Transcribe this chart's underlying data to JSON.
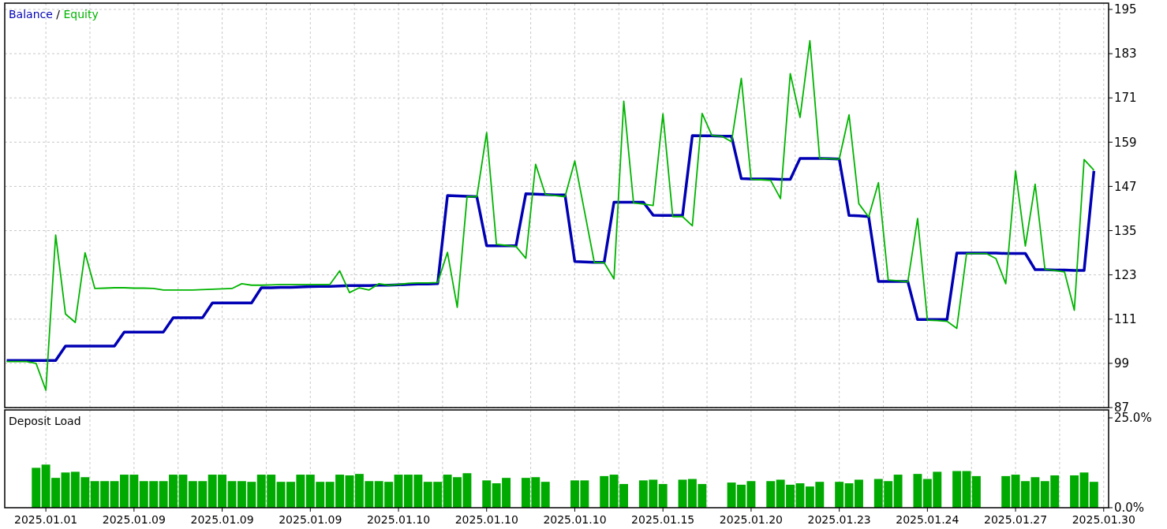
{
  "chart_data": [
    {
      "type": "line",
      "legend": "top left",
      "grid": true,
      "tick_labels": "y",
      "annotations": [
        "/"
      ],
      "categories": [
        null,
        null,
        null,
        null,
        "2025.01.01",
        null,
        null,
        null,
        null,
        null,
        null,
        null,
        null,
        "2025.01.09",
        null,
        null,
        null,
        null,
        null,
        null,
        null,
        null,
        "2025.01.09",
        null,
        null,
        null,
        null,
        null,
        null,
        null,
        null,
        "2025.01.09",
        null,
        null,
        null,
        null,
        null,
        null,
        null,
        null,
        "2025.01.10",
        null,
        null,
        null,
        null,
        null,
        null,
        null,
        null,
        "2025.01.10",
        null,
        null,
        null,
        null,
        null,
        null,
        null,
        null,
        "2025.01.10",
        null,
        null,
        null,
        null,
        null,
        null,
        null,
        null,
        "2025.01.15",
        null,
        null,
        null,
        null,
        null,
        null,
        null,
        null,
        "2025.01.20",
        null,
        null,
        null,
        null,
        null,
        null,
        null,
        null,
        "2025.01.23",
        null,
        null,
        null,
        null,
        null,
        null,
        null,
        null,
        "2025.01.24",
        null,
        null,
        null,
        null,
        null,
        null,
        null,
        null,
        "2025.01.27",
        null,
        null,
        null,
        null,
        null,
        null,
        null,
        null,
        "2025.01.30"
      ],
      "ylim": [
        87,
        196.7
      ],
      "yticks": [
        87,
        99,
        111,
        123,
        135,
        147,
        159,
        171,
        183,
        195
      ],
      "series": [
        {
          "name": "Balance",
          "color": "#0000b4",
          "values": [
            99.8,
            99.8,
            99.8,
            99.8,
            99.8,
            99.8,
            103.7,
            103.7,
            103.7,
            103.7,
            103.7,
            103.7,
            107.5,
            107.5,
            107.5,
            107.5,
            107.5,
            111.4,
            111.4,
            111.4,
            111.4,
            115.4,
            115.4,
            115.4,
            115.4,
            115.4,
            119.5,
            119.5,
            119.6,
            119.6,
            119.7,
            119.8,
            119.9,
            119.9,
            120.0,
            120.1,
            120.1,
            120.1,
            120.2,
            120.2,
            120.3,
            120.4,
            120.5,
            120.5,
            120.6,
            144.5,
            144.4,
            144.3,
            144.2,
            130.9,
            130.9,
            130.9,
            130.9,
            145.0,
            144.9,
            144.8,
            144.7,
            144.7,
            126.6,
            126.5,
            126.4,
            126.4,
            142.7,
            142.7,
            142.7,
            142.7,
            139.2,
            139.1,
            139.1,
            139.1,
            160.8,
            160.7,
            160.7,
            160.6,
            160.6,
            149.1,
            149.0,
            149.0,
            149.0,
            148.9,
            148.9,
            154.6,
            154.6,
            154.6,
            154.5,
            154.4,
            139.1,
            139.0,
            138.8,
            121.2,
            121.2,
            121.2,
            121.2,
            110.9,
            110.9,
            110.9,
            110.9,
            128.9,
            128.9,
            128.9,
            128.9,
            128.9,
            128.8,
            128.8,
            128.8,
            124.4,
            124.4,
            124.3,
            124.3,
            124.2,
            124.2,
            151.2,
            null
          ]
        },
        {
          "name": "Equity",
          "color": "#00b400",
          "values": [
            99.5,
            99.5,
            99.5,
            99.0,
            91.7,
            133.8,
            112.4,
            110.1,
            129.0,
            119.3,
            119.4,
            119.5,
            119.5,
            119.4,
            119.4,
            119.3,
            118.9,
            118.9,
            118.9,
            118.9,
            119.0,
            119.1,
            119.2,
            119.3,
            120.6,
            120.2,
            120.2,
            120.3,
            120.4,
            120.4,
            120.4,
            120.4,
            120.4,
            120.4,
            124.1,
            118.2,
            119.5,
            118.9,
            120.6,
            120.2,
            120.4,
            120.7,
            120.8,
            120.8,
            120.9,
            129.1,
            114.2,
            144.2,
            144.2,
            161.6,
            131.3,
            131.0,
            130.7,
            127.5,
            153.0,
            144.8,
            144.5,
            144.2,
            153.9,
            140.1,
            126.3,
            126.3,
            121.9,
            170.1,
            142.5,
            142.2,
            141.8,
            166.7,
            138.8,
            138.8,
            136.3,
            166.8,
            160.8,
            160.6,
            159.1,
            176.3,
            148.9,
            148.8,
            148.6,
            143.7,
            177.6,
            165.7,
            186.5,
            154.6,
            154.5,
            154.4,
            166.4,
            142.3,
            138.7,
            148.0,
            121.6,
            121.4,
            121.1,
            138.3,
            110.7,
            110.6,
            110.4,
            108.5,
            128.8,
            128.8,
            128.8,
            127.4,
            120.6,
            151.2,
            130.8,
            147.6,
            124.5,
            124.2,
            123.8,
            113.4,
            154.3,
            151.4,
            null
          ]
        }
      ]
    },
    {
      "type": "bar",
      "title": "Deposit Load",
      "grid": "x",
      "categories": [
        null,
        null,
        null,
        null,
        "2025.01.01",
        null,
        null,
        null,
        null,
        null,
        null,
        null,
        null,
        "2025.01.09",
        null,
        null,
        null,
        null,
        null,
        null,
        null,
        null,
        "2025.01.09",
        null,
        null,
        null,
        null,
        null,
        null,
        null,
        null,
        "2025.01.09",
        null,
        null,
        null,
        null,
        null,
        null,
        null,
        null,
        "2025.01.10",
        null,
        null,
        null,
        null,
        null,
        null,
        null,
        null,
        "2025.01.10",
        null,
        null,
        null,
        null,
        null,
        null,
        null,
        null,
        "2025.01.10",
        null,
        null,
        null,
        null,
        null,
        null,
        null,
        null,
        "2025.01.15",
        null,
        null,
        null,
        null,
        null,
        null,
        null,
        null,
        "2025.01.20",
        null,
        null,
        null,
        null,
        null,
        null,
        null,
        null,
        "2025.01.23",
        null,
        null,
        null,
        null,
        null,
        null,
        null,
        null,
        "2025.01.24",
        null,
        null,
        null,
        null,
        null,
        null,
        null,
        null,
        "2025.01.27",
        null,
        null,
        null,
        null,
        null,
        null,
        null,
        null,
        "2025.01.30"
      ],
      "ylim": [
        0,
        27.2
      ],
      "yticks": [
        {
          "value": 0,
          "label": "0.0%"
        },
        {
          "value": 25,
          "label": "25.0%"
        }
      ],
      "series": [
        {
          "color": "#00aa00",
          "values": [
            null,
            null,
            null,
            11.1,
            12.0,
            8.3,
            9.8,
            10.0,
            8.5,
            7.4,
            7.4,
            7.4,
            9.2,
            9.2,
            7.4,
            7.4,
            7.4,
            9.2,
            9.2,
            7.4,
            7.4,
            9.2,
            9.2,
            7.4,
            7.4,
            7.2,
            9.2,
            9.2,
            7.2,
            7.2,
            9.2,
            9.2,
            7.2,
            7.2,
            9.2,
            9.0,
            9.4,
            7.4,
            7.4,
            7.2,
            9.2,
            9.2,
            9.2,
            7.2,
            7.2,
            9.2,
            8.5,
            9.6,
            null,
            7.6,
            6.8,
            8.3,
            null,
            8.3,
            8.5,
            7.2,
            null,
            null,
            7.6,
            7.6,
            null,
            8.8,
            9.2,
            6.6,
            null,
            7.6,
            7.8,
            6.6,
            null,
            7.8,
            8.0,
            6.6,
            null,
            null,
            7.0,
            6.4,
            7.4,
            null,
            7.4,
            7.8,
            6.4,
            6.8,
            5.9,
            7.2,
            null,
            7.2,
            6.8,
            7.8,
            null,
            8.0,
            7.4,
            9.2,
            null,
            9.4,
            8.0,
            10.0,
            null,
            10.2,
            10.2,
            8.8,
            null,
            null,
            8.8,
            9.2,
            7.4,
            8.5,
            7.4,
            9.0,
            null,
            9.0,
            9.8,
            7.2,
            null
          ]
        }
      ]
    }
  ]
}
